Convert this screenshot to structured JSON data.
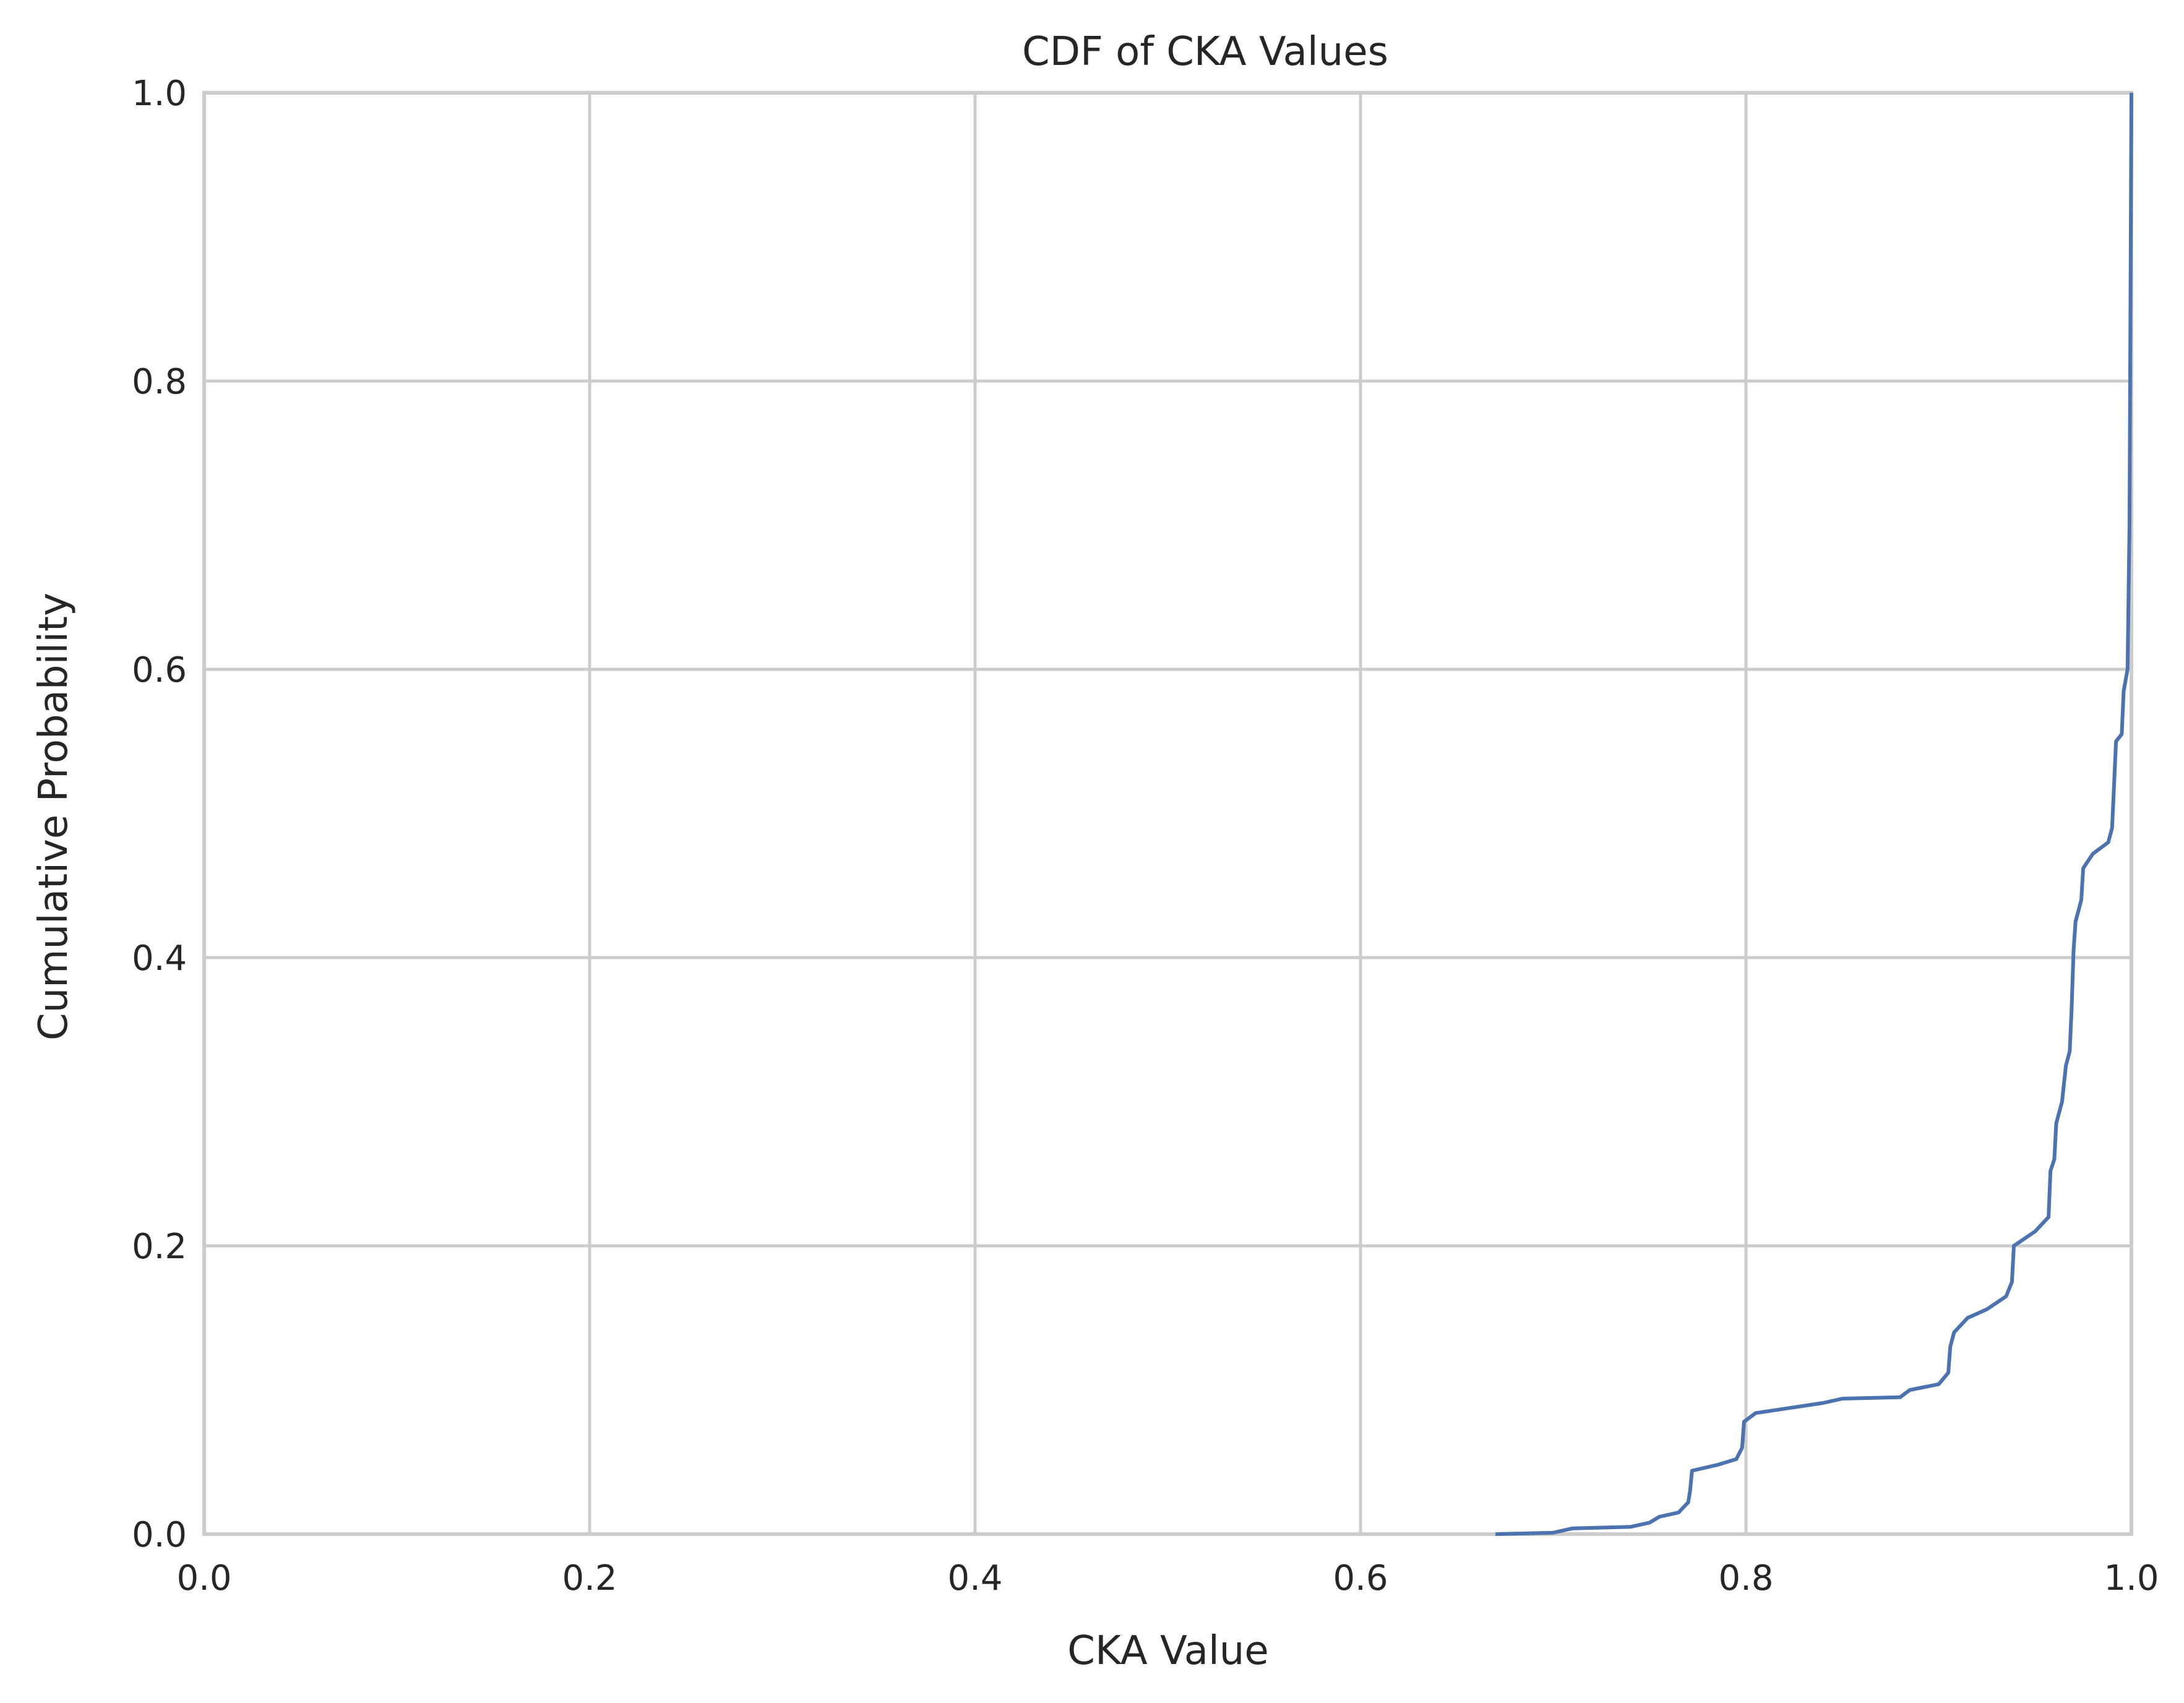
{
  "chart_data": {
    "type": "line",
    "title": "CDF of CKA Values",
    "xlabel": "CKA Value",
    "ylabel": "Cumulative Probability",
    "xlim": [
      0.0,
      1.0
    ],
    "ylim": [
      0.0,
      1.0
    ],
    "x_ticks": [
      "0.0",
      "0.2",
      "0.4",
      "0.6",
      "0.8",
      "1.0"
    ],
    "y_ticks": [
      "0.0",
      "0.2",
      "0.4",
      "0.6",
      "0.8",
      "1.0"
    ],
    "grid": true,
    "legend": "none",
    "colors": {
      "line": "#4c72b0",
      "grid": "#cccccc",
      "text": "#262626"
    },
    "series": [
      {
        "points": [
          [
            0.67,
            0.0
          ],
          [
            0.7,
            0.001
          ],
          [
            0.71,
            0.004
          ],
          [
            0.74,
            0.005
          ],
          [
            0.75,
            0.008
          ],
          [
            0.755,
            0.012
          ],
          [
            0.765,
            0.015
          ],
          [
            0.77,
            0.022
          ],
          [
            0.771,
            0.03
          ],
          [
            0.772,
            0.044
          ],
          [
            0.785,
            0.048
          ],
          [
            0.795,
            0.052
          ],
          [
            0.798,
            0.06
          ],
          [
            0.799,
            0.078
          ],
          [
            0.805,
            0.084
          ],
          [
            0.82,
            0.087
          ],
          [
            0.84,
            0.091
          ],
          [
            0.85,
            0.094
          ],
          [
            0.88,
            0.095
          ],
          [
            0.885,
            0.1
          ],
          [
            0.9,
            0.104
          ],
          [
            0.905,
            0.112
          ],
          [
            0.906,
            0.13
          ],
          [
            0.908,
            0.14
          ],
          [
            0.915,
            0.15
          ],
          [
            0.925,
            0.156
          ],
          [
            0.935,
            0.165
          ],
          [
            0.938,
            0.175
          ],
          [
            0.939,
            0.2
          ],
          [
            0.95,
            0.21
          ],
          [
            0.957,
            0.22
          ],
          [
            0.958,
            0.252
          ],
          [
            0.96,
            0.26
          ],
          [
            0.961,
            0.285
          ],
          [
            0.964,
            0.3
          ],
          [
            0.966,
            0.325
          ],
          [
            0.968,
            0.335
          ],
          [
            0.969,
            0.365
          ],
          [
            0.97,
            0.405
          ],
          [
            0.971,
            0.425
          ],
          [
            0.974,
            0.44
          ],
          [
            0.975,
            0.462
          ],
          [
            0.98,
            0.472
          ],
          [
            0.988,
            0.48
          ],
          [
            0.99,
            0.49
          ],
          [
            0.991,
            0.52
          ],
          [
            0.992,
            0.55
          ],
          [
            0.995,
            0.555
          ],
          [
            0.996,
            0.585
          ],
          [
            0.998,
            0.6
          ],
          [
            0.999,
            0.7
          ],
          [
            1.0,
            1.0
          ]
        ]
      }
    ]
  }
}
